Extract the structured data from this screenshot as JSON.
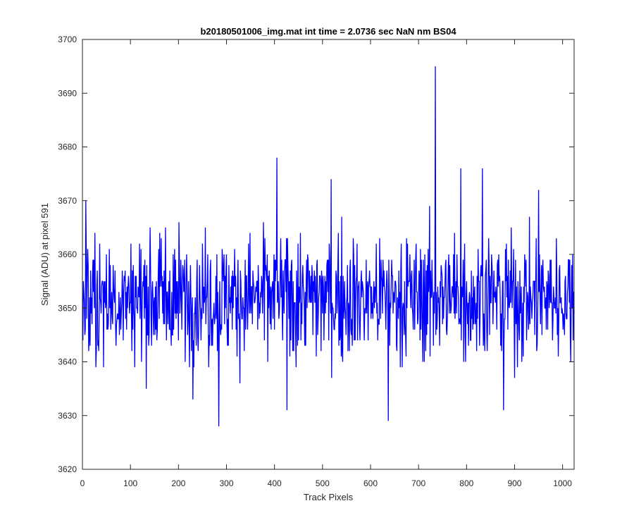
{
  "chart_data": {
    "type": "line",
    "title": "b20180501006_img.mat int time = 2.0736 sec  NaN nm BS04",
    "xlabel": "Track Pixels",
    "ylabel": "Signal (ADU) at pixel 591",
    "xlim": [
      0,
      1024
    ],
    "ylim": [
      3620,
      3700
    ],
    "xticks": [
      0,
      100,
      200,
      300,
      400,
      500,
      600,
      700,
      800,
      900,
      1000
    ],
    "yticks": [
      3620,
      3630,
      3640,
      3650,
      3660,
      3670,
      3680,
      3690,
      3700
    ],
    "grid": false,
    "legend": "none",
    "series": [
      {
        "color": "#0000ff",
        "x_start": 1,
        "x_step": 1,
        "point_count": 1024,
        "baseline": 3652,
        "noise_std": 5.8,
        "min": 3628,
        "max": 3695,
        "notable_points": [
          {
            "x": 284,
            "y": 3628
          },
          {
            "x": 405,
            "y": 3678
          },
          {
            "x": 426,
            "y": 3631
          },
          {
            "x": 518,
            "y": 3674
          },
          {
            "x": 637,
            "y": 3629
          },
          {
            "x": 735,
            "y": 3695
          },
          {
            "x": 788,
            "y": 3676
          },
          {
            "x": 833,
            "y": 3676
          },
          {
            "x": 877,
            "y": 3631
          },
          {
            "x": 950,
            "y": 3672
          }
        ]
      }
    ]
  }
}
